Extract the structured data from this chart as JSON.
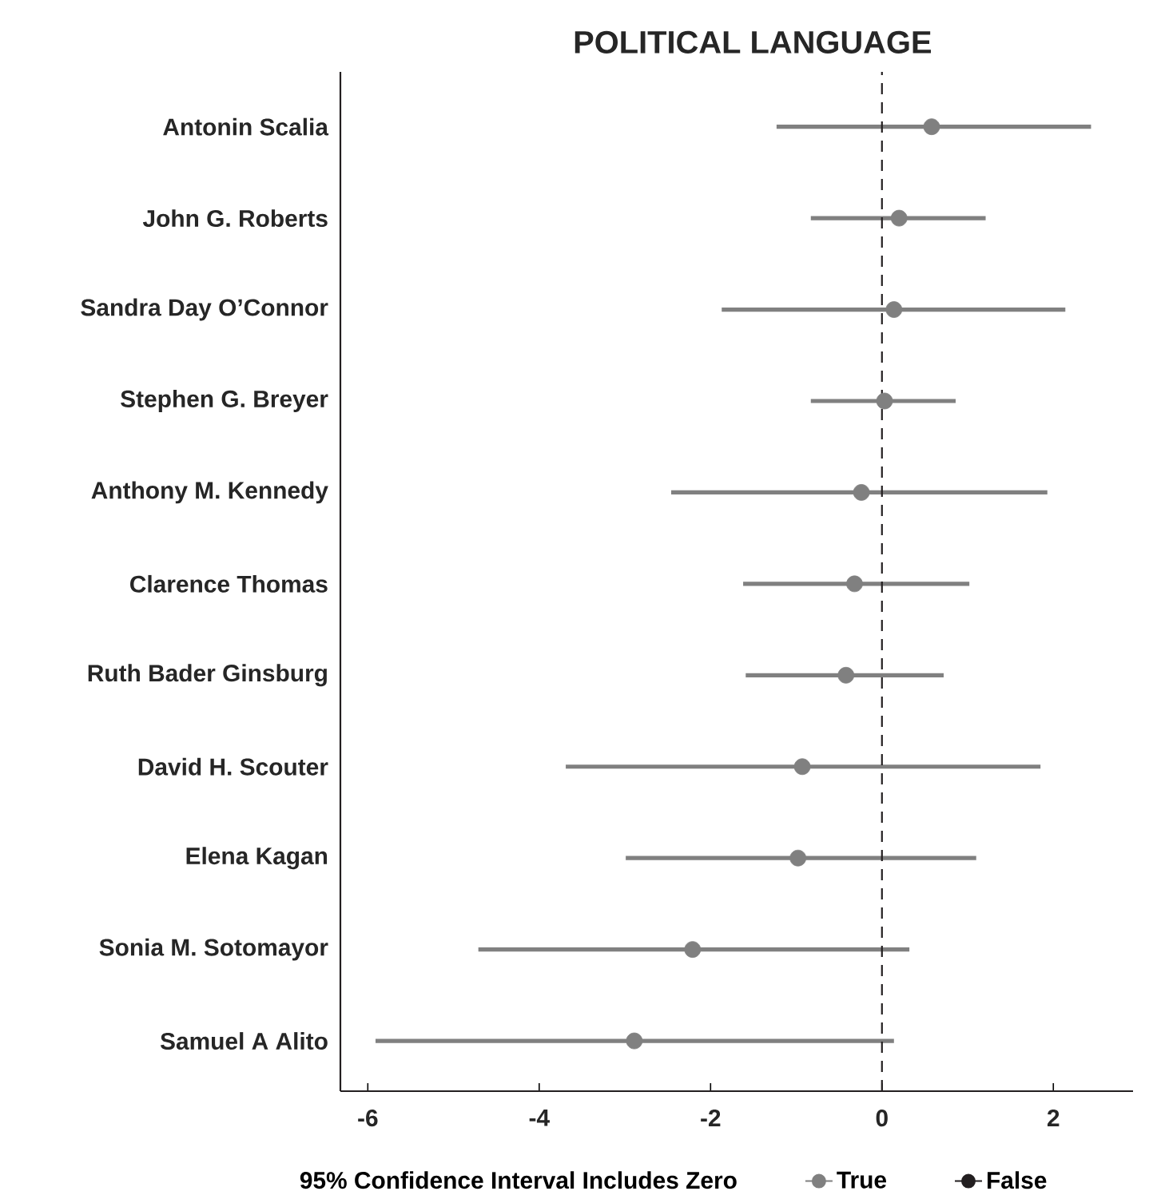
{
  "chart_data": {
    "type": "scatter",
    "orientation": "horizontal",
    "title": "POLITICAL LANGUAGE",
    "legend_title": "95% Confidence Interval Includes Zero",
    "categories": [
      "Antonin Scalia",
      "John G. Roberts",
      "Sandra Day O’Connor",
      "Stephen G. Breyer",
      "Anthony M. Kennedy",
      "Clarence Thomas",
      "Ruth Bader Ginsburg",
      "David H. Scouter",
      "Elena Kagan",
      "Sonia M. Sotomayor",
      "Samuel A Alito"
    ],
    "series": [
      {
        "name": "True",
        "color": "#808080",
        "values": [
          0.58,
          0.2,
          0.14,
          0.03,
          -0.24,
          -0.32,
          -0.42,
          -0.93,
          -0.98,
          -2.21,
          -2.89
        ],
        "errors": [
          [
            -1.23,
            2.44
          ],
          [
            -0.83,
            1.21
          ],
          [
            -1.87,
            2.14
          ],
          [
            -0.83,
            0.86
          ],
          [
            -2.46,
            1.93
          ],
          [
            -1.62,
            1.02
          ],
          [
            -1.59,
            0.72
          ],
          [
            -3.69,
            1.85
          ],
          [
            -2.99,
            1.1
          ],
          [
            -4.71,
            0.32
          ],
          [
            -5.91,
            0.14
          ]
        ]
      },
      {
        "name": "False",
        "color": "#231f20",
        "values": [
          null,
          null,
          null,
          null,
          null,
          null,
          null,
          null,
          null,
          null,
          null
        ]
      }
    ],
    "xlim": [
      -6.32,
      2.93
    ],
    "xticks": [
      -6,
      -4,
      -2,
      0,
      2
    ],
    "ref_lines": [
      {
        "axis": "x",
        "value": 0,
        "line_style": "dashed",
        "color": "#231f20"
      }
    ],
    "marker": "circle",
    "legend": "bottom",
    "grid": false
  }
}
